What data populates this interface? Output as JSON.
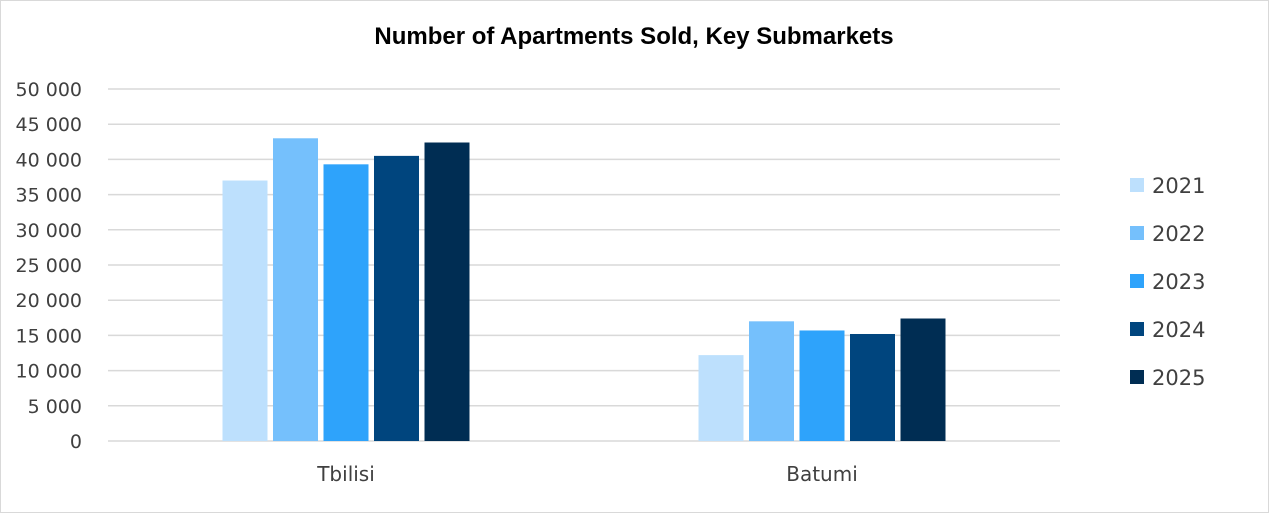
{
  "chart_data": {
    "type": "bar",
    "title": "Number of Apartments Sold, Key Submarkets",
    "xlabel": "",
    "ylabel": "",
    "categories": [
      "Tbilisi",
      "Batumi"
    ],
    "ylim": [
      0,
      50000
    ],
    "yticks": [
      0,
      5000,
      10000,
      15000,
      20000,
      25000,
      30000,
      35000,
      40000,
      45000,
      50000
    ],
    "ytick_labels": [
      "0",
      "5 000",
      "10 000",
      "15 000",
      "20 000",
      "25 000",
      "30 000",
      "35 000",
      "40 000",
      "45 000",
      "50 000"
    ],
    "grid": true,
    "legend_position": "right",
    "series": [
      {
        "name": "2021",
        "color": "#bde0fd",
        "values": [
          37000,
          12200
        ]
      },
      {
        "name": "2022",
        "color": "#75c0fc",
        "values": [
          43000,
          17000
        ]
      },
      {
        "name": "2023",
        "color": "#2ea3fb",
        "values": [
          39300,
          15700
        ]
      },
      {
        "name": "2024",
        "color": "#00457e",
        "values": [
          40500,
          15200
        ]
      },
      {
        "name": "2025",
        "color": "#002d53",
        "values": [
          42400,
          17400
        ]
      }
    ]
  }
}
